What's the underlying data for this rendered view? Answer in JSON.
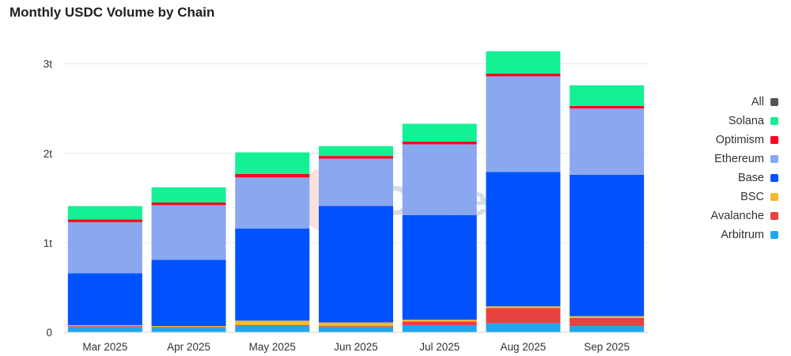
{
  "chart_data": {
    "type": "bar",
    "stacked": true,
    "title": "Monthly USDC Volume by Chain",
    "xlabel": "",
    "ylabel": "",
    "categories": [
      "Mar 2025",
      "Apr 2025",
      "May 2025",
      "Jun 2025",
      "Jul 2025",
      "Aug 2025",
      "Sep 2025"
    ],
    "ylim": [
      0,
      3.2
    ],
    "yticks": [
      {
        "value": 0,
        "label": "0"
      },
      {
        "value": 1,
        "label": "1t"
      },
      {
        "value": 2,
        "label": "2t"
      },
      {
        "value": 3,
        "label": "3t"
      }
    ],
    "grid": true,
    "legend_position": "right",
    "legend_all_label": "All",
    "legend_all_color": "#555555",
    "series": [
      {
        "name": "Arbitrum",
        "color": "#1ea7f0",
        "values": [
          0.06,
          0.05,
          0.07,
          0.06,
          0.08,
          0.1,
          0.07
        ]
      },
      {
        "name": "Avalanche",
        "color": "#e84142",
        "values": [
          0.01,
          0.01,
          0.01,
          0.01,
          0.04,
          0.17,
          0.09
        ]
      },
      {
        "name": "BSC",
        "color": "#f3ba2f",
        "values": [
          0.01,
          0.01,
          0.05,
          0.04,
          0.02,
          0.02,
          0.02
        ]
      },
      {
        "name": "Base",
        "color": "#0052ff",
        "values": [
          0.58,
          0.74,
          1.03,
          1.3,
          1.17,
          1.5,
          1.58
        ]
      },
      {
        "name": "Ethereum",
        "color": "#8aa8f0",
        "values": [
          0.57,
          0.61,
          0.57,
          0.53,
          0.79,
          1.07,
          0.74
        ]
      },
      {
        "name": "Optimism",
        "color": "#ff0420",
        "values": [
          0.03,
          0.03,
          0.04,
          0.03,
          0.03,
          0.03,
          0.03
        ]
      },
      {
        "name": "Solana",
        "color": "#14f195",
        "values": [
          0.15,
          0.17,
          0.24,
          0.11,
          0.2,
          0.25,
          0.23
        ]
      }
    ]
  }
}
